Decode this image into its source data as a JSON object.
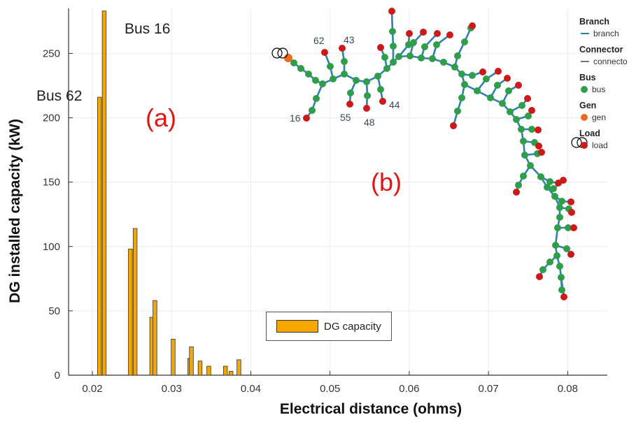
{
  "chart_data": [
    {
      "type": "bar",
      "xlabel": "Electrical distance (ohms)",
      "ylabel": "DG installed capacity (kW)",
      "xlim": [
        0.017,
        0.085
      ],
      "ylim": [
        0,
        285
      ],
      "x_ticks": [
        0.02,
        0.03,
        0.04,
        0.05,
        0.06,
        0.07,
        0.08
      ],
      "y_ticks": [
        0,
        50,
        100,
        150,
        200,
        250
      ],
      "grid": true,
      "legend": {
        "position": "bottom-center",
        "entries": [
          "DG capacity"
        ]
      },
      "series": [
        {
          "name": "DG capacity",
          "color": "#f5a700",
          "points": [
            {
              "x": 0.0209,
              "y": 216
            },
            {
              "x": 0.0215,
              "y": 283
            },
            {
              "x": 0.0248,
              "y": 98
            },
            {
              "x": 0.0254,
              "y": 114
            },
            {
              "x": 0.0275,
              "y": 45
            },
            {
              "x": 0.0279,
              "y": 58
            },
            {
              "x": 0.0302,
              "y": 28
            },
            {
              "x": 0.0323,
              "y": 13
            },
            {
              "x": 0.0325,
              "y": 22
            },
            {
              "x": 0.0336,
              "y": 11
            },
            {
              "x": 0.0347,
              "y": 7
            },
            {
              "x": 0.0368,
              "y": 7
            },
            {
              "x": 0.0375,
              "y": 3
            },
            {
              "x": 0.0385,
              "y": 12
            }
          ]
        }
      ]
    },
    {
      "type": "diagram",
      "description": "network",
      "legend": [
        {
          "title": "Branch",
          "item": "branch",
          "color": "#2f7fb5",
          "shape": "line"
        },
        {
          "title": "Connector",
          "item": "connecto",
          "color": "#777777",
          "shape": "line"
        },
        {
          "title": "Bus",
          "item": "bus",
          "color": "#2e9e48",
          "shape": "dot"
        },
        {
          "title": "Gen",
          "item": "gen",
          "color": "#ee6a22",
          "shape": "dot"
        },
        {
          "title": "Load",
          "item": "load",
          "color": "#cc1a1a",
          "shape": "dot"
        }
      ],
      "bus_labels": [
        "62",
        "43",
        "16",
        "55",
        "48",
        "44"
      ]
    }
  ],
  "annotations": {
    "bus16": "Bus 16",
    "bus62": "Bus 62",
    "panel_a": "(a)",
    "panel_b": "(b)"
  },
  "colors": {
    "bar_fill": "#f5a700",
    "branch": "#2f7fb5",
    "bus": "#2e9e48",
    "load": "#cc1a1a",
    "gen": "#ee6a22",
    "panel_label": "#e01515"
  }
}
